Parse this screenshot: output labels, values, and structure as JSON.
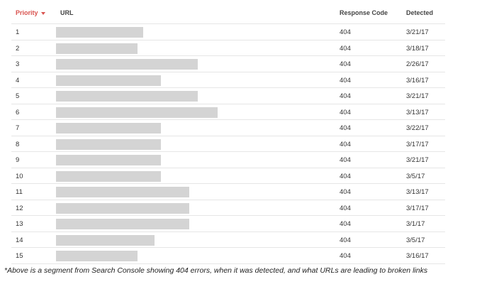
{
  "table": {
    "headers": {
      "priority": "Priority",
      "url": "URL",
      "response_code": "Response Code",
      "detected": "Detected"
    },
    "sort_icon": "caret-down-icon",
    "rows": [
      {
        "priority": "1",
        "response_code": "404",
        "detected": "3/21/17"
      },
      {
        "priority": "2",
        "response_code": "404",
        "detected": "3/18/17"
      },
      {
        "priority": "3",
        "response_code": "404",
        "detected": "2/26/17"
      },
      {
        "priority": "4",
        "response_code": "404",
        "detected": "3/16/17"
      },
      {
        "priority": "5",
        "response_code": "404",
        "detected": "3/21/17"
      },
      {
        "priority": "6",
        "response_code": "404",
        "detected": "3/13/17"
      },
      {
        "priority": "7",
        "response_code": "404",
        "detected": "3/22/17"
      },
      {
        "priority": "8",
        "response_code": "404",
        "detected": "3/17/17"
      },
      {
        "priority": "9",
        "response_code": "404",
        "detected": "3/21/17"
      },
      {
        "priority": "10",
        "response_code": "404",
        "detected": "3/5/17"
      },
      {
        "priority": "11",
        "response_code": "404",
        "detected": "3/13/17"
      },
      {
        "priority": "12",
        "response_code": "404",
        "detected": "3/17/17"
      },
      {
        "priority": "13",
        "response_code": "404",
        "detected": "3/1/17"
      },
      {
        "priority": "14",
        "response_code": "404",
        "detected": "3/5/17"
      },
      {
        "priority": "15",
        "response_code": "404",
        "detected": "3/16/17"
      }
    ]
  },
  "caption": "*Above is a segment from Search Console showing 404 errors, when it was detected, and what URLs are leading to broken links",
  "colors": {
    "accent": "#d9534f",
    "redaction": "#d4d4d4",
    "divider": "#e6e6e6"
  }
}
